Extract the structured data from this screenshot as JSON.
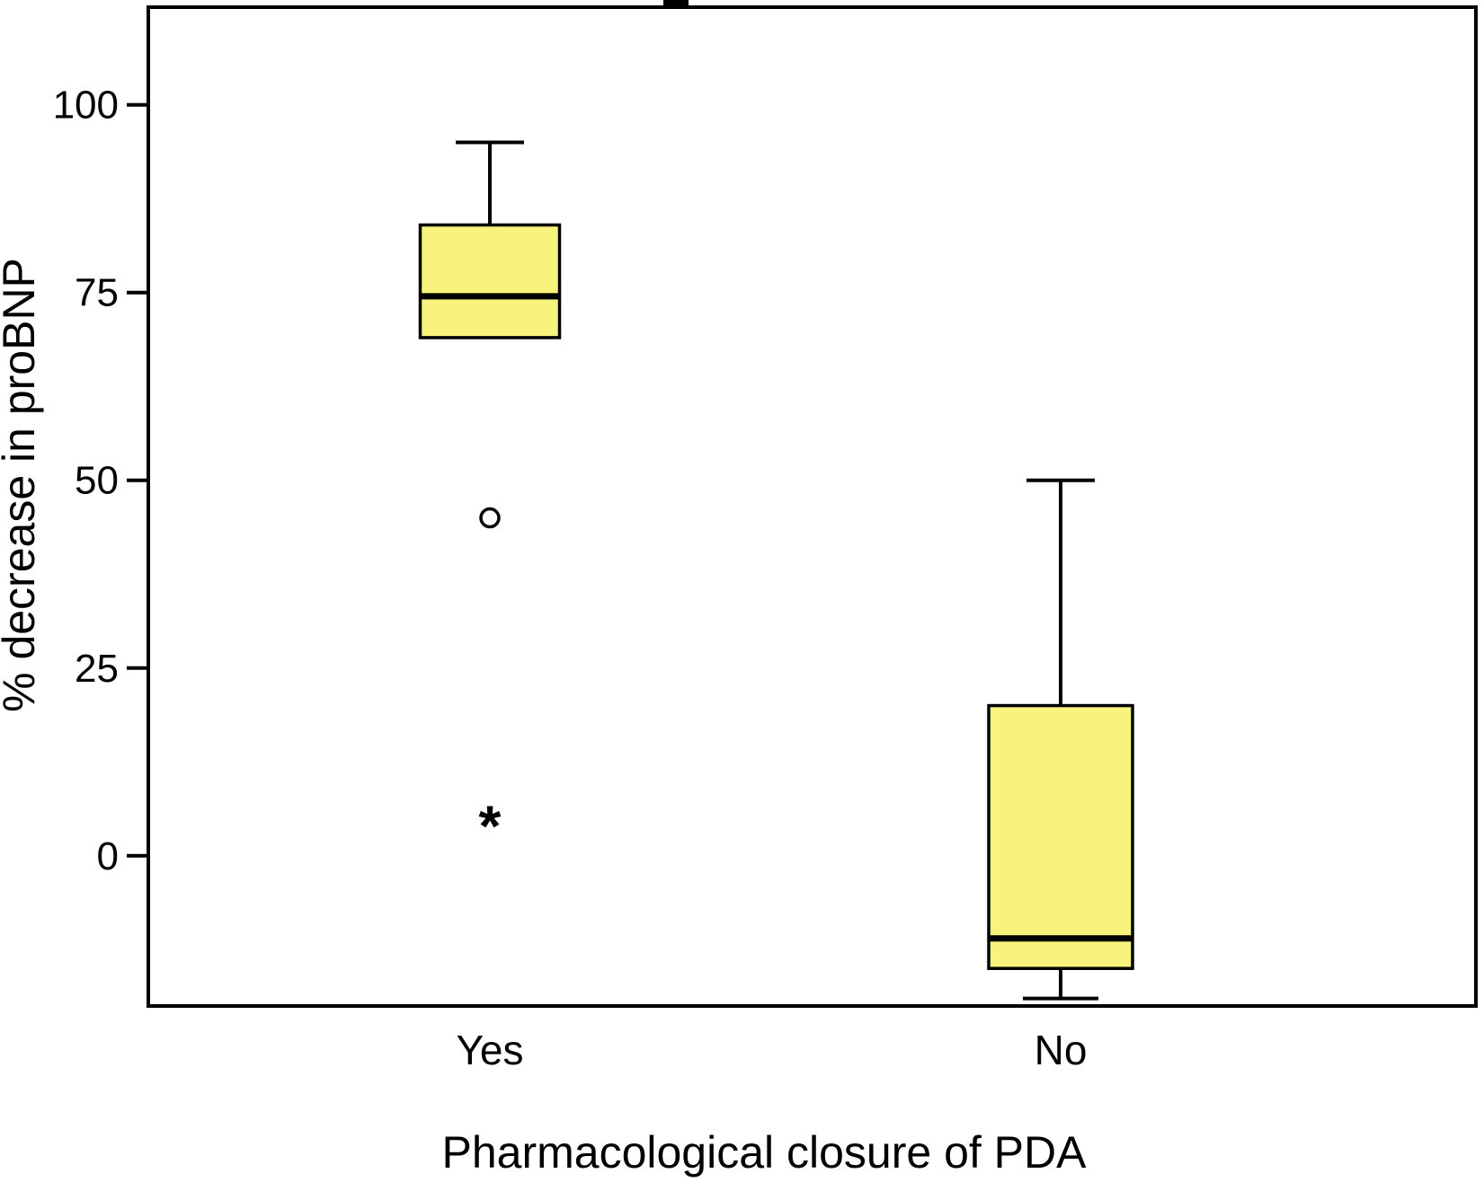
{
  "chart_data": {
    "type": "boxplot",
    "title": "",
    "xlabel": "Pharmacological closure of PDA",
    "ylabel": "% decrease in proBNP",
    "categories": [
      "Yes",
      "No"
    ],
    "yticks": [
      100,
      75,
      50,
      25,
      0
    ],
    "ylim": [
      -20,
      113
    ],
    "grid": false,
    "legend": "none",
    "box_fill": "#f7f37c",
    "box_stroke": "#000000",
    "series": [
      {
        "category": "Yes",
        "whisker_low": null,
        "q1": 69,
        "median": 74.5,
        "q3": 84,
        "whisker_high": 95,
        "outliers": [
          {
            "value": 45,
            "type": "circle"
          },
          {
            "value": 4,
            "type": "star"
          }
        ]
      },
      {
        "category": "No",
        "whisker_low": -19,
        "q1": -15,
        "median": -11,
        "q3": 20,
        "whisker_high": 50,
        "outliers": []
      }
    ]
  }
}
